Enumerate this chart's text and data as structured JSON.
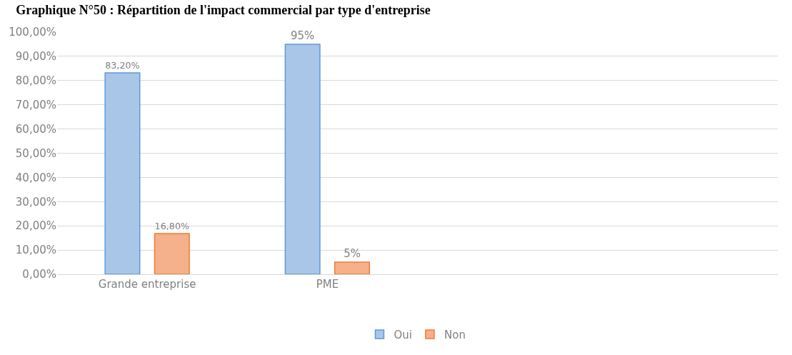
{
  "chart_data": {
    "type": "bar",
    "title": "Graphique N°50 : Répartition de l'impact commercial par type d'entreprise",
    "categories": [
      "Grande entreprise",
      "PME",
      null,
      null
    ],
    "series": [
      {
        "name": "Oui",
        "color": "#a9c6e8",
        "values": [
          83.2,
          95,
          null,
          null
        ],
        "value_labels": [
          "83,20%",
          "95%",
          null,
          null
        ]
      },
      {
        "name": "Non",
        "color": "#f5b08c",
        "values": [
          16.8,
          5,
          null,
          null
        ],
        "value_labels": [
          "16,80%",
          "5%",
          null,
          null
        ]
      }
    ],
    "ylim": [
      0,
      100
    ],
    "yticks": [
      {
        "value": 0,
        "label": "0,00%"
      },
      {
        "value": 10,
        "label": "10,00%"
      },
      {
        "value": 20,
        "label": "20,00%"
      },
      {
        "value": 30,
        "label": "30,00%"
      },
      {
        "value": 40,
        "label": "40,00%"
      },
      {
        "value": 50,
        "label": "50,00%"
      },
      {
        "value": 60,
        "label": "60,00%"
      },
      {
        "value": 70,
        "label": "70,00%"
      },
      {
        "value": 80,
        "label": "80,00%"
      },
      {
        "value": 90,
        "label": "90,00%"
      },
      {
        "value": 100,
        "label": "100,00%"
      }
    ],
    "grid": "y",
    "legend": "bottom"
  }
}
